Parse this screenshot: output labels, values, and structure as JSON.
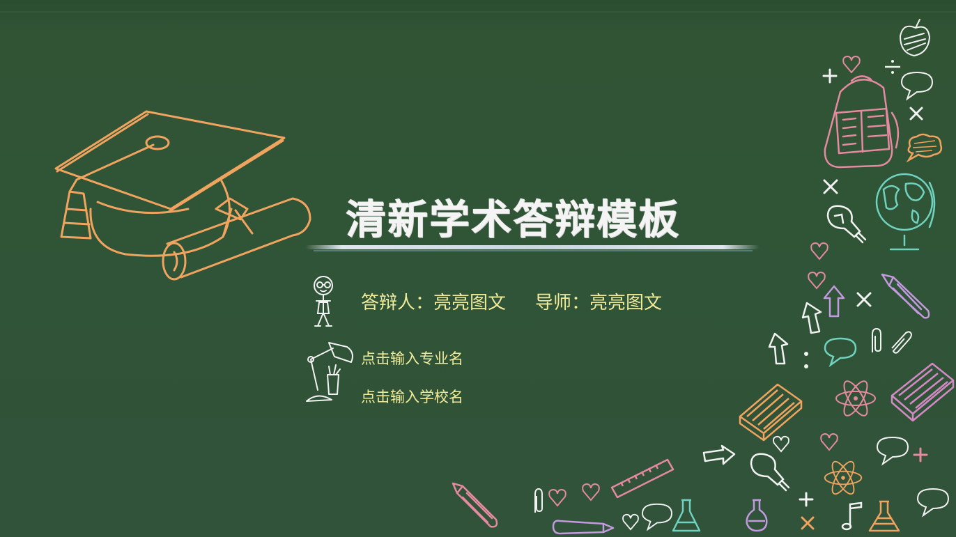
{
  "slide": {
    "title": "清新学术答辩模板",
    "defender_label": "答辩人：",
    "defender_name": "亮亮图文",
    "advisor_label": "导师：",
    "advisor_name": "亮亮图文",
    "major_placeholder": "点击输入专业名",
    "school_placeholder": "点击输入学校名"
  },
  "colors": {
    "board": "#2f5233",
    "title": "#f4f4f4",
    "text": "#f1ec9a",
    "orange": "#f0a45f",
    "pink": "#e58aa0",
    "teal": "#6fd3c0",
    "violet": "#c49ae0",
    "white": "#f2f2f2"
  },
  "icons": [
    "graduation-cap-icon",
    "diploma-scroll-icon",
    "boy-icon",
    "desk-lamp-icon",
    "backpack-icon",
    "globe-icon",
    "lightbulb-icon",
    "book-icon",
    "ruler-icon",
    "atom-icon",
    "flask-icon",
    "speech-bubble-icon",
    "heart-icon",
    "arrow-icon",
    "pencil-icon",
    "paperclip-icon",
    "music-note-icon",
    "apple-icon",
    "plus-icon",
    "cross-icon"
  ]
}
